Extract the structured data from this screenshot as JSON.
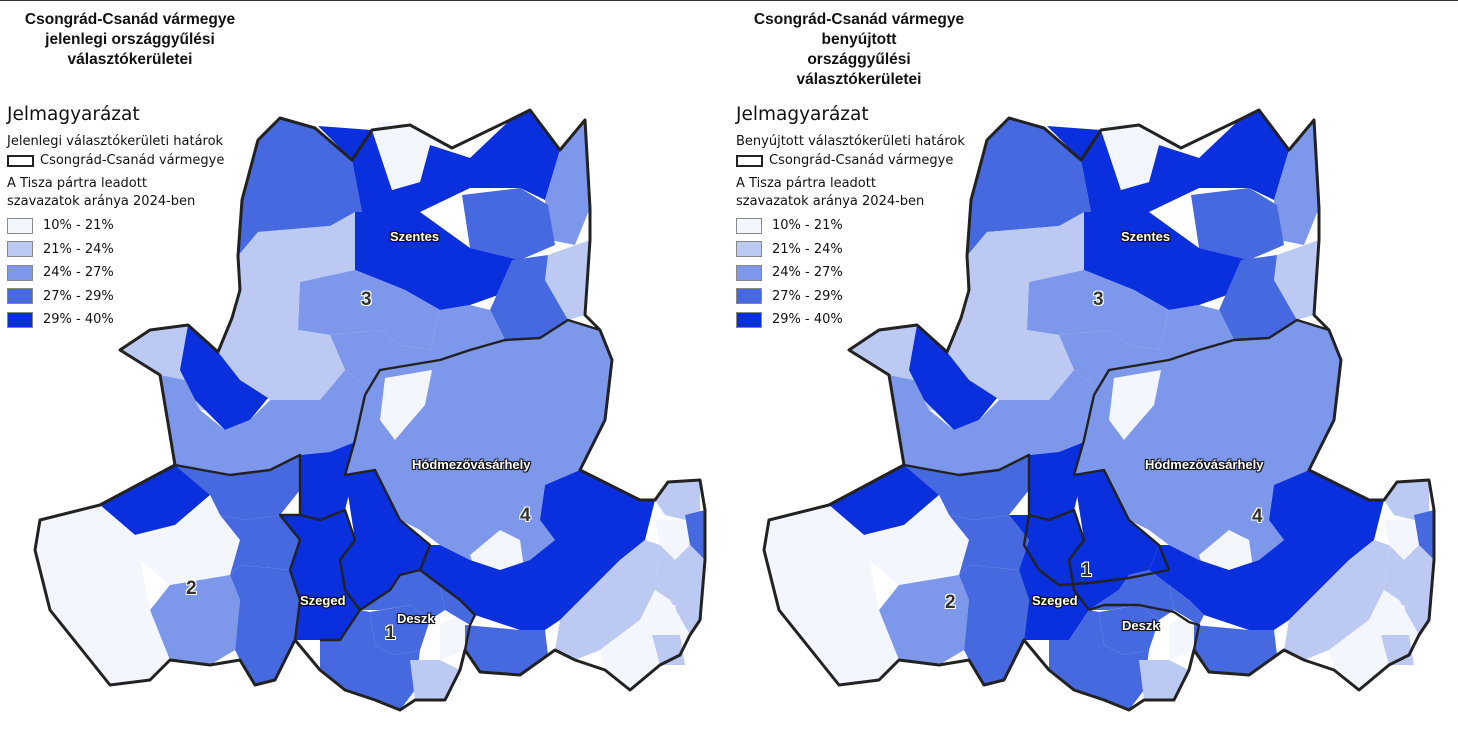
{
  "colors": {
    "class_1": "#f4f6fd",
    "class_2": "#bccaf3",
    "class_3": "#7d98ea",
    "class_4": "#4669e0",
    "class_5": "#0a2fdd",
    "district_border": "#222222",
    "municipal_border": "#9aa4c4"
  },
  "left": {
    "title_lines": [
      "Csongrád-Csanád vármegye",
      "jelenlegi országgyűlési",
      "választókerületei"
    ],
    "legend": {
      "heading": "Jelmagyarázat",
      "boundary_label": "Jelenlegi választókerületi határok",
      "county_label": "Csongrád-Csanád vármegye",
      "share_label_lines": [
        "A Tisza pártra leadott",
        "szavazatok aránya 2024-ben"
      ],
      "classes": [
        "10% - 21%",
        "21% - 24%",
        "24% - 27%",
        "27% - 29%",
        "29% - 40%"
      ]
    },
    "towns": [
      "Szentes",
      "Hódmezővásárhely",
      "Szeged",
      "Deszk"
    ],
    "district_numbers": [
      "3",
      "4",
      "2",
      "1"
    ]
  },
  "right": {
    "title_lines": [
      "Csongrád-Csanád vármegye",
      "benyújtott",
      "országgyűlési",
      "választókerületei"
    ],
    "legend": {
      "heading": "Jelmagyarázat",
      "boundary_label": "Benyújtott választókerületi határok",
      "county_label": "Csongrád-Csanád vármegye",
      "share_label_lines": [
        "A Tisza pártra leadott",
        "szavazatok aránya 2024-ben"
      ],
      "classes": [
        "10% - 21%",
        "21% - 24%",
        "24% - 27%",
        "27% - 29%",
        "29% - 40%"
      ]
    },
    "towns": [
      "Szentes",
      "Hódmezővásárhely",
      "Szeged",
      "Deszk"
    ],
    "district_numbers": [
      "3",
      "4",
      "2",
      "1"
    ]
  }
}
